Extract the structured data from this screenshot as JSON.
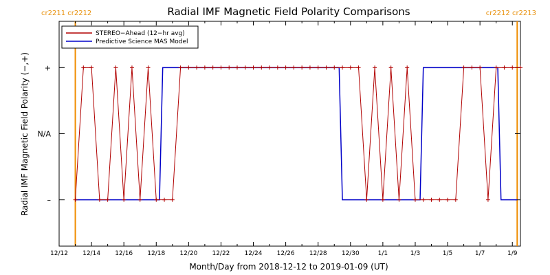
{
  "chart_data": {
    "type": "line",
    "title": "Radial IMF Magnetic Field Polarity Comparisons",
    "xlabel": "Month/Day from 2018-12-12 to 2019-01-09 (UT)",
    "ylabel": "Radial IMF Magnetic Field Polarity (−,+)",
    "x_ticks": [
      "12/12",
      "12/14",
      "12/16",
      "12/18",
      "12/20",
      "12/22",
      "12/24",
      "12/26",
      "12/28",
      "12/30",
      "1/1",
      "1/3",
      "1/5",
      "1/7",
      "1/9"
    ],
    "y_ticks": [
      "–",
      "N/A",
      "+"
    ],
    "xlim": [
      0,
      28.5
    ],
    "ylim": [
      -1.7,
      1.7
    ],
    "carrington_markers": [
      {
        "day": 1.0,
        "label": "cr2211 cr2212"
      },
      {
        "day": 28.3,
        "label": "cr2212 cr2213"
      }
    ],
    "series": [
      {
        "name": "STEREO−Ahead (12−hr avg)",
        "color": "#b00000",
        "marker": "+",
        "x": [
          1.0,
          1.5,
          2.0,
          2.5,
          3.0,
          3.5,
          4.0,
          4.5,
          5.0,
          5.5,
          6.0,
          6.5,
          7.0,
          7.5,
          8.0,
          8.5,
          9.0,
          9.5,
          10.0,
          10.5,
          11.0,
          11.5,
          12.0,
          12.5,
          13.0,
          13.5,
          14.0,
          14.5,
          15.0,
          15.5,
          16.0,
          16.5,
          17.0,
          17.5,
          18.0,
          18.5,
          19.0,
          19.5,
          20.0,
          20.5,
          21.0,
          21.5,
          22.0,
          22.5,
          23.0,
          23.5,
          24.0,
          24.5,
          25.0,
          25.5,
          26.0,
          26.5,
          27.0,
          27.5,
          28.0,
          28.5
        ],
        "y": [
          -1,
          1,
          1,
          -1,
          -1,
          1,
          -1,
          1,
          -1,
          1,
          -1,
          -1,
          -1,
          1,
          1,
          1,
          1,
          1,
          1,
          1,
          1,
          1,
          1,
          1,
          1,
          1,
          1,
          1,
          1,
          1,
          1,
          1,
          1,
          1,
          1,
          1,
          -1,
          1,
          -1,
          1,
          -1,
          1,
          -1,
          -1,
          -1,
          -1,
          -1,
          -1,
          1,
          1,
          1,
          -1,
          1,
          1,
          1,
          1
        ]
      },
      {
        "name": "Predictive Science MAS Model",
        "color": "#0000c8",
        "x": [
          1.0,
          6.2,
          6.4,
          17.3,
          17.5,
          22.3,
          22.5,
          27.1,
          27.3,
          28.3
        ],
        "y": [
          -1,
          -1,
          1,
          1,
          -1,
          -1,
          1,
          1,
          -1,
          -1
        ]
      }
    ],
    "legend": "top-left",
    "grid": false
  }
}
